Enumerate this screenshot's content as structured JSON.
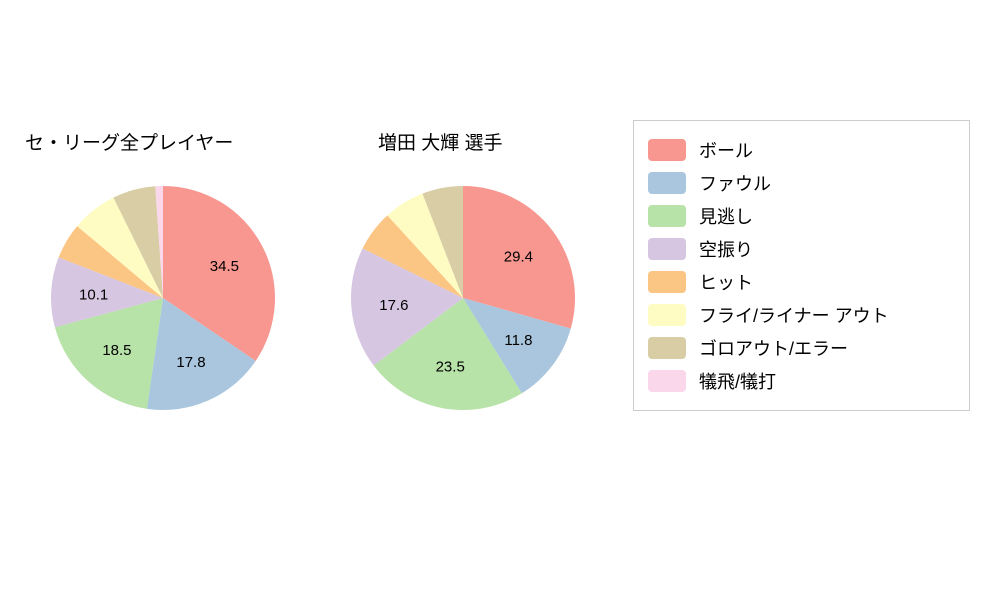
{
  "legend": {
    "items": [
      {
        "label": "ボール",
        "color": "#F8978F"
      },
      {
        "label": "ファウル",
        "color": "#A9C6DE"
      },
      {
        "label": "見逃し",
        "color": "#B7E2A8"
      },
      {
        "label": "空振り",
        "color": "#D7C6E2"
      },
      {
        "label": "ヒット",
        "color": "#FBC583"
      },
      {
        "label": "フライ/ライナー アウト",
        "color": "#FEFCC3"
      },
      {
        "label": "ゴロアウト/エラー",
        "color": "#D8CDA5"
      },
      {
        "label": "犠飛/犠打",
        "color": "#FBD7EC"
      }
    ]
  },
  "chart_data": [
    {
      "type": "pie",
      "title": "セ・リーグ全プレイヤー",
      "labels": [
        "ボール",
        "ファウル",
        "見逃し",
        "空振り",
        "ヒット",
        "フライ/ライナー アウト",
        "ゴロアウト/エラー",
        "犠飛/犠打"
      ],
      "values": [
        34.5,
        17.8,
        18.5,
        10.1,
        5.2,
        6.6,
        6.2,
        1.1
      ],
      "value_labels_shown": [
        "34.5",
        "17.8",
        "18.5",
        "10.1"
      ],
      "show_value_labels_min": 10,
      "start_angle_deg": 0,
      "direction": "clockwise",
      "legend_position": "right-box"
    },
    {
      "type": "pie",
      "title": "増田 大輝  選手",
      "labels": [
        "ボール",
        "ファウル",
        "見逃し",
        "空振り",
        "ヒット",
        "フライ/ライナー アウト",
        "ゴロアウト/エラー",
        "犠飛/犠打"
      ],
      "values": [
        29.4,
        11.8,
        23.5,
        17.6,
        5.9,
        5.9,
        5.9,
        0.0
      ],
      "value_labels_shown": [
        "29.4",
        "11.8",
        "23.5",
        "17.6"
      ],
      "show_value_labels_min": 10,
      "start_angle_deg": 0,
      "direction": "clockwise",
      "legend_position": "right-box"
    }
  ]
}
